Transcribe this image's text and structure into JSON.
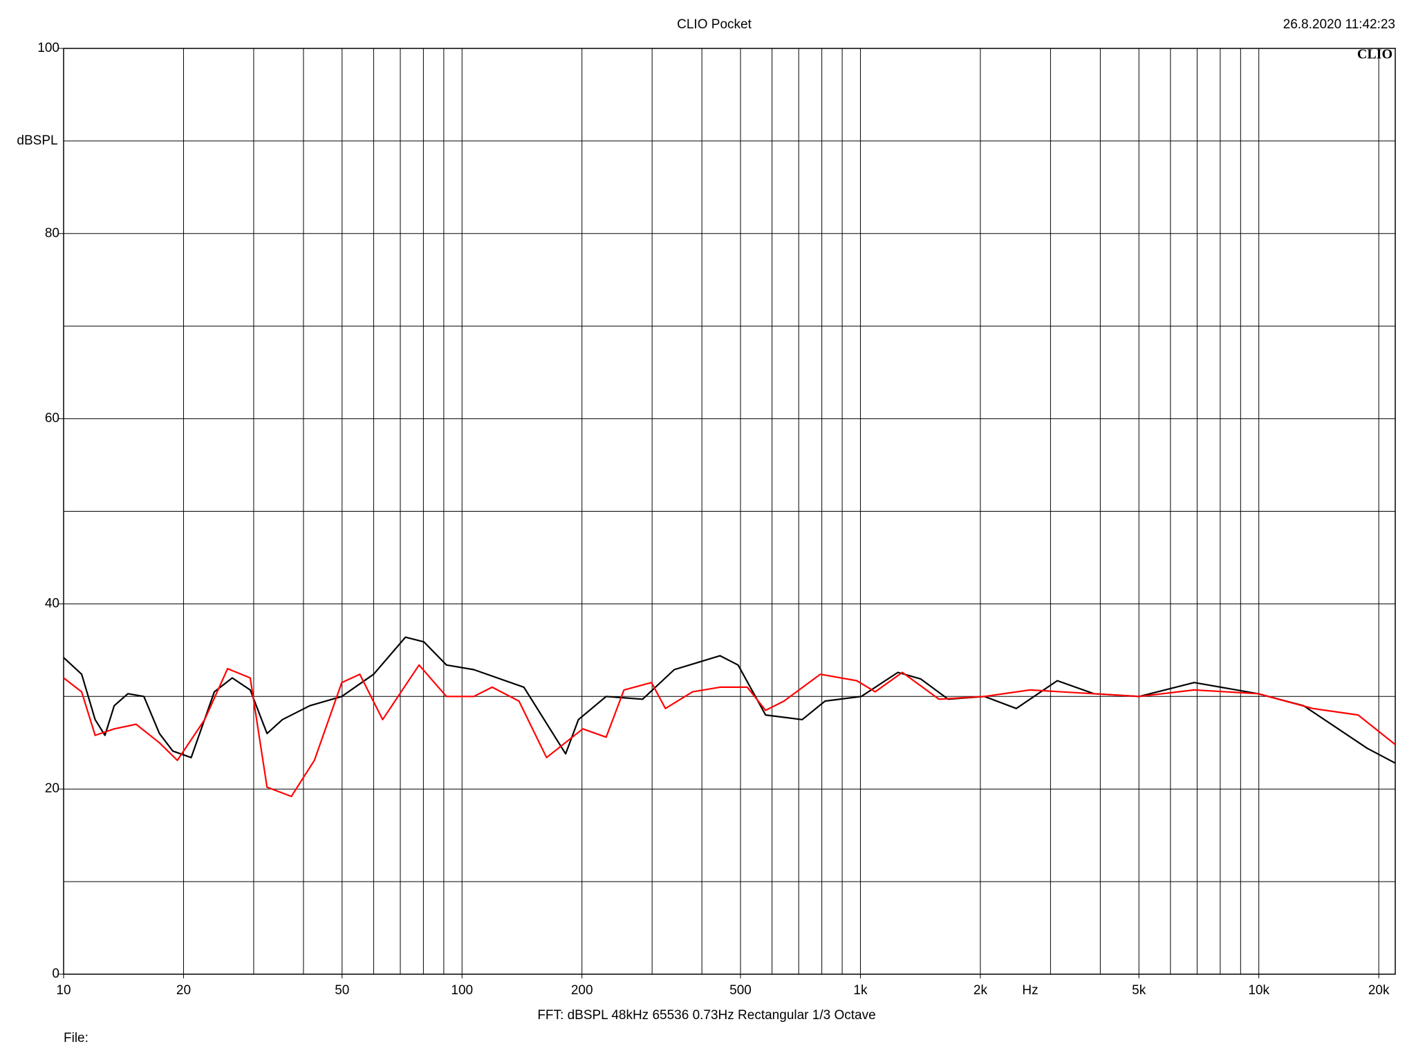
{
  "chart_data": {
    "type": "line",
    "title": "CLIO Pocket",
    "timestamp": "26.8.2020 11:42:23",
    "logo": "CLIO",
    "x_label": "Hz",
    "y_label": "dBSPL",
    "footer": "FFT:  dBSPL  48kHz  65536  0.73Hz  Rectangular  1/3 Octave",
    "file_label": "File:",
    "log_x": true,
    "grid": true,
    "xlim": [
      10,
      22000
    ],
    "xticks": [
      10,
      20,
      50,
      100,
      200,
      500,
      {
        "value": 1000,
        "label": "1k"
      },
      {
        "value": 2000,
        "label": "2k"
      },
      {
        "value": 5000,
        "label": "5k"
      },
      {
        "value": 10000,
        "label": "10k"
      },
      {
        "value": 20000,
        "label": "20k"
      }
    ],
    "xgrid": [
      10,
      20,
      30,
      40,
      50,
      60,
      70,
      80,
      90,
      100,
      200,
      300,
      400,
      500,
      600,
      700,
      800,
      900,
      1000,
      2000,
      3000,
      4000,
      5000,
      6000,
      7000,
      8000,
      9000,
      10000,
      20000
    ],
    "ylim": [
      0,
      100
    ],
    "yticks": [
      0,
      20,
      40,
      60,
      80,
      100
    ],
    "ygrid": [
      0,
      10,
      20,
      30,
      40,
      50,
      60,
      70,
      80,
      90,
      100
    ],
    "series": [
      {
        "name": "black",
        "color": "#000000",
        "x": [
          10,
          11.1,
          12,
          12.7,
          13.4,
          14.5,
          15.9,
          17.4,
          18.8,
          20.9,
          23.9,
          26.5,
          29.4,
          32.4,
          35.4,
          41.5,
          49.9,
          60,
          72.1,
          80.2,
          91.4,
          107,
          143,
          182,
          196,
          230,
          284,
          341,
          444,
          493,
          578,
          714,
          815,
          1005,
          1242,
          1416,
          1660,
          2048,
          2462,
          3120,
          3855,
          5012,
          6883,
          9954,
          12950,
          18710,
          22000
        ],
        "values": [
          34.2,
          32.4,
          27.5,
          25.8,
          29,
          30.3,
          30,
          26,
          24.1,
          23.4,
          30.5,
          32,
          30.7,
          26,
          27.5,
          29,
          30,
          32.4,
          36.4,
          35.9,
          33.4,
          32.9,
          31,
          23.8,
          27.5,
          30,
          29.7,
          32.9,
          34.4,
          33.4,
          28,
          27.5,
          29.5,
          30,
          32.6,
          31.9,
          29.7,
          30,
          28.7,
          31.7,
          30.3,
          30,
          31.5,
          30.3,
          29,
          24.4,
          22.8
        ]
      },
      {
        "name": "red",
        "color": "#ff0000",
        "x": [
          10,
          11.1,
          12,
          13.4,
          15.2,
          17.4,
          19.3,
          22.6,
          25.8,
          29.4,
          32.4,
          37.3,
          42.6,
          49.9,
          55.4,
          63.2,
          78,
          91.4,
          107,
          119,
          139,
          163,
          201,
          230,
          255,
          299,
          324,
          379,
          444,
          520,
          578,
          643,
          793,
          979,
          1089,
          1274,
          1574,
          2048,
          2665,
          5012,
          6883,
          9954,
          13650,
          17750,
          22000
        ],
        "values": [
          32,
          30.5,
          25.8,
          26.5,
          27,
          25,
          23.1,
          27.5,
          33,
          32,
          20.2,
          19.2,
          23.1,
          31.5,
          32.4,
          27.5,
          33.4,
          30,
          30,
          31,
          29.5,
          23.4,
          26.5,
          25.6,
          30.7,
          31.5,
          28.7,
          30.5,
          31,
          31,
          28.5,
          29.5,
          32.4,
          31.7,
          30.5,
          32.6,
          29.7,
          30,
          30.7,
          30,
          30.7,
          30.3,
          28.7,
          28,
          24.8
        ]
      }
    ]
  }
}
